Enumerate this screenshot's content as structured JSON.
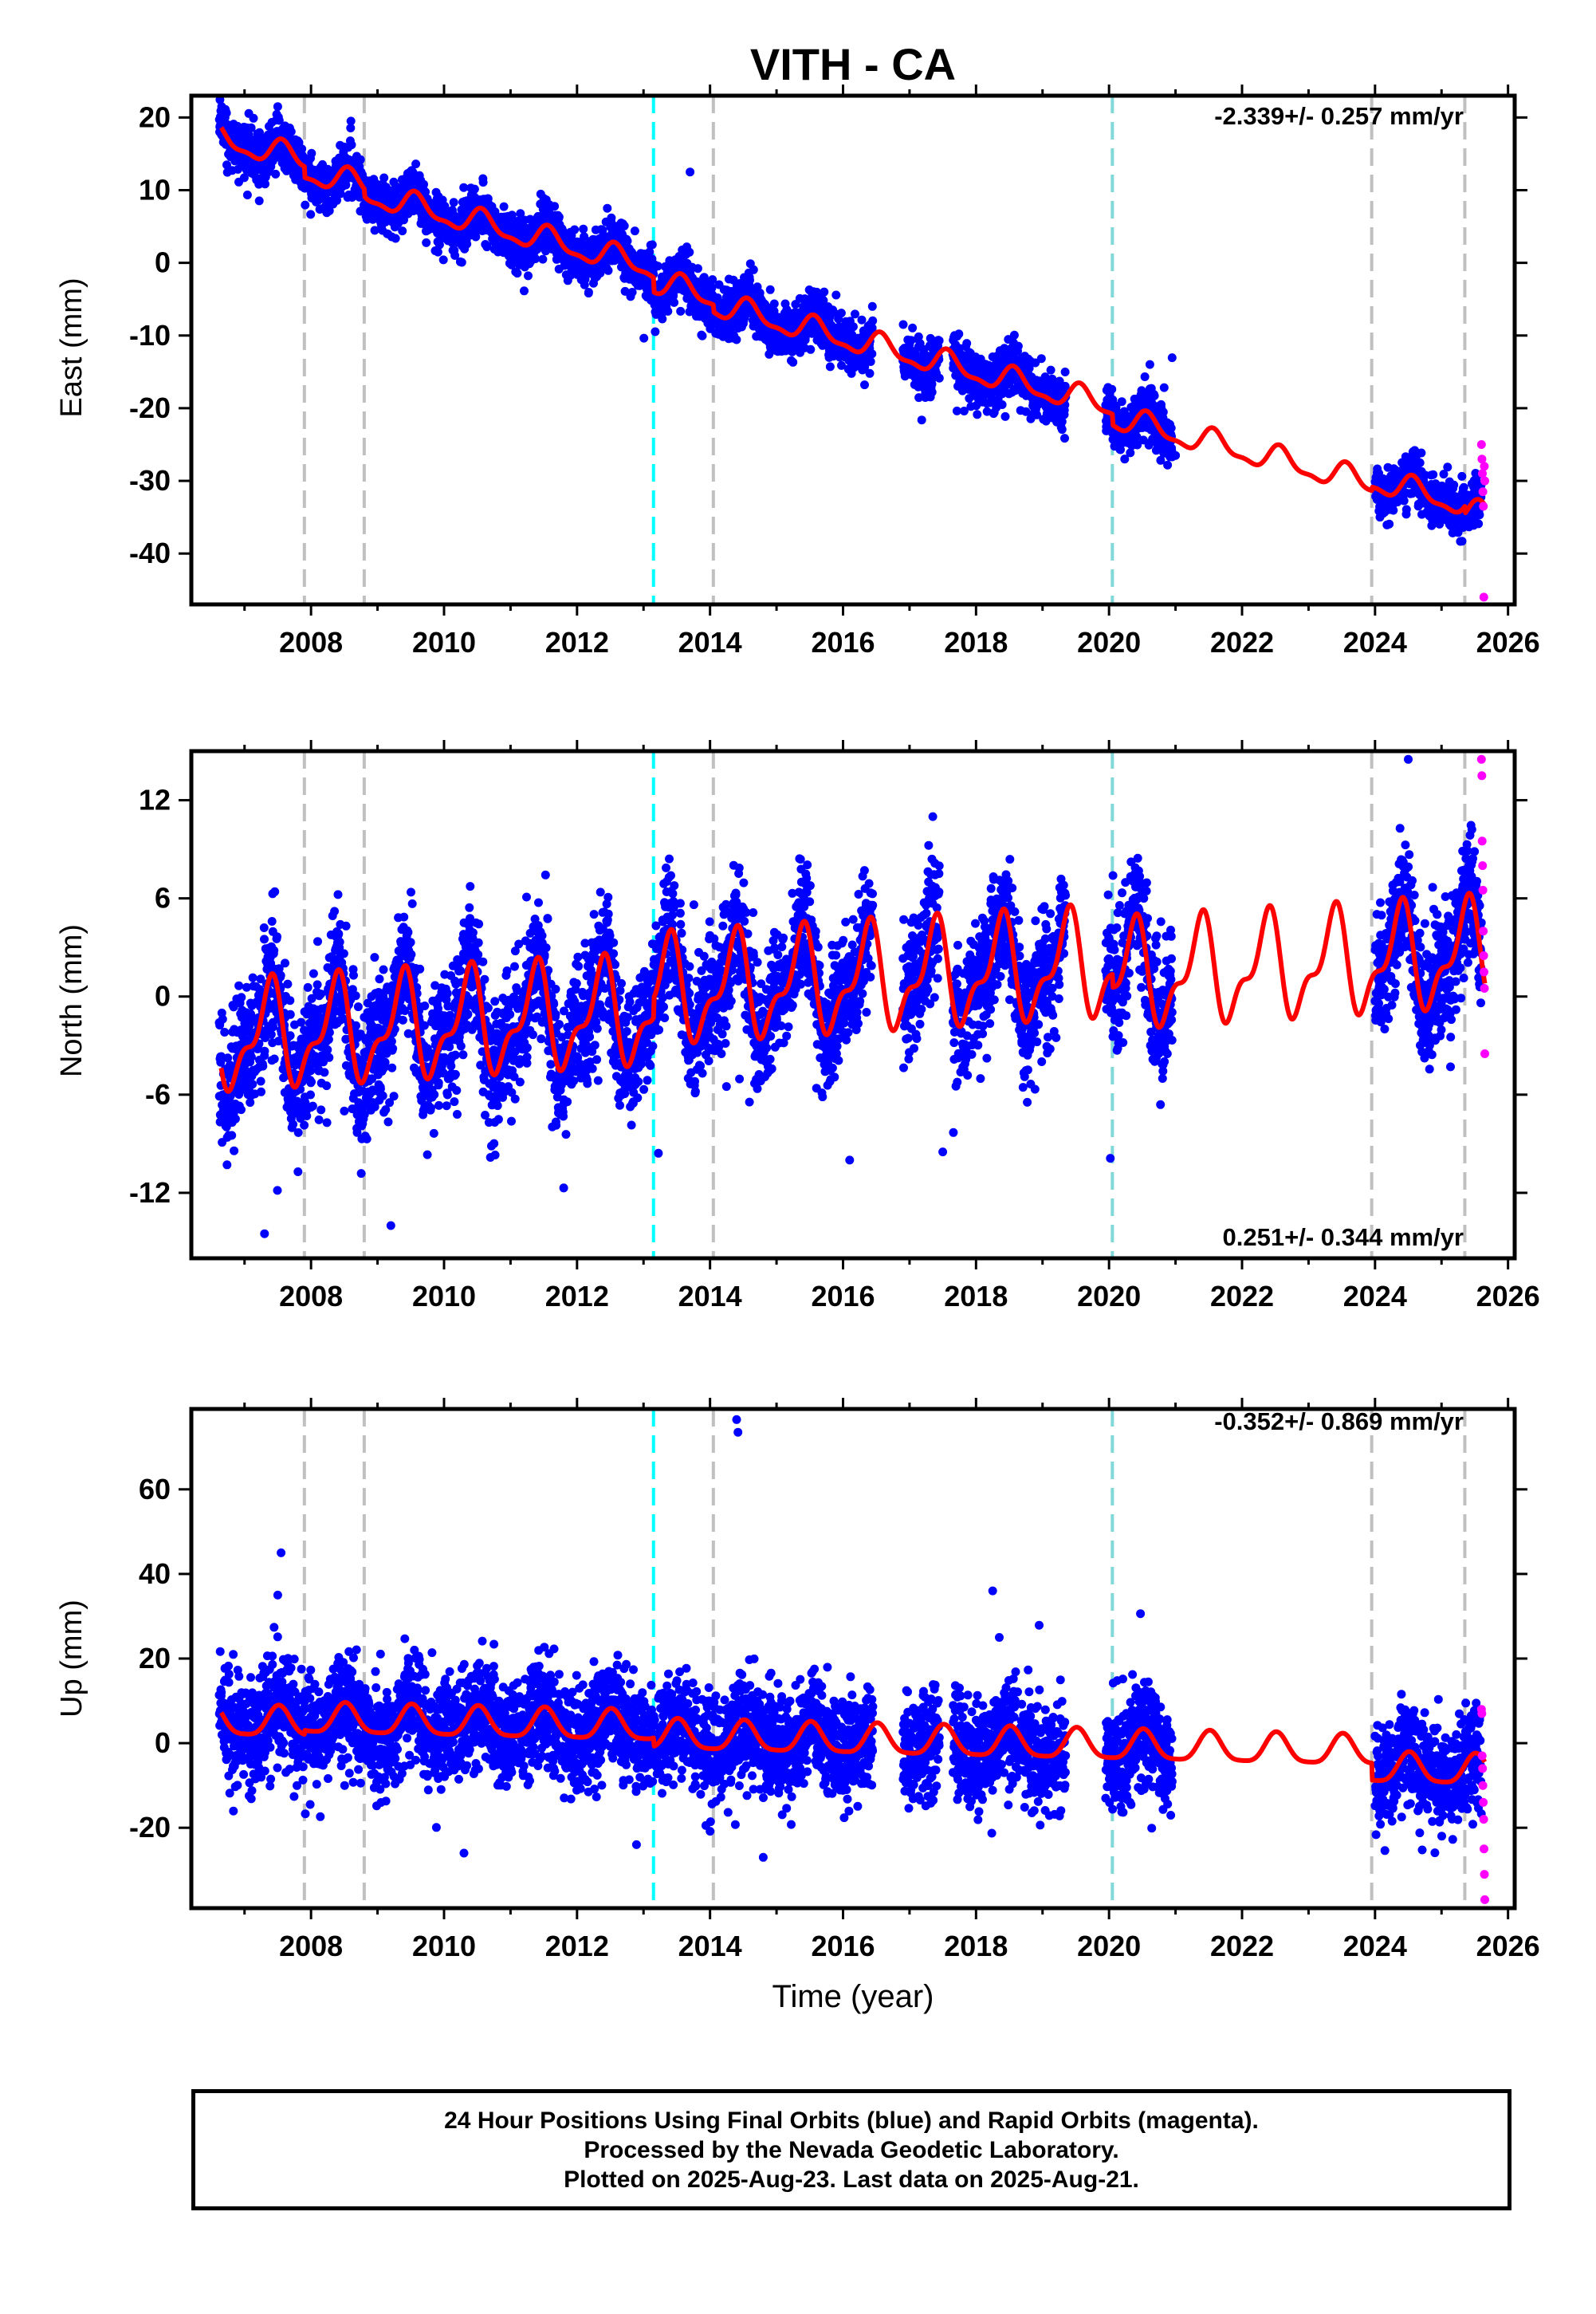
{
  "figure": {
    "title": "VITH - CA",
    "xlabel": "Time (year)",
    "footer": [
      "24 Hour Positions Using Final Orbits (blue) and Rapid Orbits (magenta).",
      "Processed by the Nevada Geodetic Laboratory.",
      "Plotted on 2025-Aug-23. Last data on 2025-Aug-21."
    ]
  },
  "colors": {
    "final_orbits": "#0000ff",
    "rapid_orbits": "#ff00ff",
    "model_fit": "#ff0000",
    "equipment_change_line": "#c0c0c0",
    "earthquake_line": "#00ffff",
    "combined_line": "#80d8d8"
  },
  "chart_data": [
    {
      "type": "scatter",
      "component": "east",
      "ylabel": "East (mm)",
      "rate_text": "-2.339+/- 0.257 mm/yr",
      "rate_position": "top-right",
      "xlim": [
        2006.2,
        2026.1
      ],
      "ylim": [
        -47,
        23
      ],
      "yticks": [
        20,
        10,
        0,
        -10,
        -20,
        -30,
        -40
      ],
      "xticks": [
        2008,
        2010,
        2012,
        2014,
        2016,
        2018,
        2020,
        2022,
        2024,
        2026
      ],
      "gray_lines": [
        2007.9,
        2008.8,
        2014.05,
        2023.95,
        2025.35
      ],
      "cyan_lines": [
        2013.15
      ],
      "mixed_lines": [
        2020.05
      ],
      "fit": {
        "start": 2006.65,
        "end": 2025.65,
        "ref_year": 2006.65,
        "intercept": 17.0,
        "rate": -2.339,
        "annual_amp": 1.6,
        "annual_phase": 4.2,
        "semi_amp": 0.6,
        "semi_phase": 1.0,
        "offsets": [
          [
            2007.9,
            -1.5
          ],
          [
            2008.8,
            -1.0
          ],
          [
            2013.15,
            -2.0
          ],
          [
            2014.05,
            -1.0
          ],
          [
            2020.05,
            -1.5
          ],
          [
            2023.95,
            0.5
          ],
          [
            2025.35,
            -1.0
          ]
        ]
      },
      "scatter": {
        "noise": 1.7,
        "spikes": [
          [
            2007.5,
            21.5
          ],
          [
            2008.6,
            19.5
          ],
          [
            2013.7,
            12.5
          ],
          [
            2021.0,
            -26.5
          ]
        ]
      },
      "segments": [
        [
          2006.62,
          2016.45
        ],
        [
          2016.9,
          2017.45
        ],
        [
          2017.65,
          2019.35
        ],
        [
          2019.95,
          2020.95
        ],
        [
          2024.0,
          2025.6
        ]
      ],
      "rapid": {
        "start": 2025.6,
        "end": 2025.65,
        "values": [
          -25.0,
          -27.0,
          -29.0,
          -31.5,
          -33.5,
          -46.0,
          -28.0,
          -30.0
        ]
      }
    },
    {
      "type": "scatter",
      "component": "north",
      "ylabel": "North (mm)",
      "rate_text": "0.251+/- 0.344 mm/yr",
      "rate_position": "bottom-right",
      "xlim": [
        2006.2,
        2026.1
      ],
      "ylim": [
        -16,
        15
      ],
      "yticks": [
        12,
        6,
        0,
        -6,
        -12
      ],
      "xticks": [
        2008,
        2010,
        2012,
        2014,
        2016,
        2018,
        2020,
        2022,
        2024,
        2026
      ],
      "gray_lines": [
        2007.9,
        2008.8,
        2014.05,
        2023.95,
        2025.35
      ],
      "cyan_lines": [
        2013.15
      ],
      "mixed_lines": [
        2020.05
      ],
      "fit": {
        "start": 2006.65,
        "end": 2025.65,
        "ref_year": 2006.65,
        "intercept": -2.6,
        "rate": 0.251,
        "annual_amp": 2.8,
        "annual_phase": 5.6,
        "semi_amp": 1.3,
        "semi_phase": 2.2,
        "offsets": [
          [
            2013.15,
            1.2
          ],
          [
            2020.05,
            -0.8
          ]
        ]
      },
      "scatter": {
        "noise": 1.9,
        "spikes": [
          [
            2007.3,
            -14.5
          ],
          [
            2008.5,
            -7.0
          ],
          [
            2009.2,
            -14.0
          ],
          [
            2011.8,
            -11.7
          ],
          [
            2016.1,
            -10.0
          ],
          [
            2017.5,
            -9.5
          ],
          [
            2024.5,
            14.5
          ],
          [
            2017.35,
            11.0
          ]
        ]
      },
      "segments": [
        [
          2006.62,
          2016.45
        ],
        [
          2016.9,
          2017.45
        ],
        [
          2017.65,
          2019.35
        ],
        [
          2019.95,
          2020.95
        ],
        [
          2024.0,
          2025.6
        ]
      ],
      "rapid": {
        "start": 2025.6,
        "end": 2025.65,
        "values": [
          14.5,
          13.5,
          9.5,
          8.0,
          6.5,
          4.0,
          2.5,
          1.5,
          0.5,
          -3.5
        ]
      }
    },
    {
      "type": "scatter",
      "component": "up",
      "ylabel": "Up (mm)",
      "rate_text": "-0.352+/- 0.869 mm/yr",
      "rate_position": "top-right",
      "xlim": [
        2006.2,
        2026.1
      ],
      "ylim": [
        -39,
        79
      ],
      "yticks": [
        60,
        40,
        20,
        0,
        -20
      ],
      "xticks": [
        2008,
        2010,
        2012,
        2014,
        2016,
        2018,
        2020,
        2022,
        2024,
        2026
      ],
      "gray_lines": [
        2007.9,
        2008.8,
        2014.05,
        2023.95,
        2025.35
      ],
      "cyan_lines": [
        2013.15
      ],
      "mixed_lines": [
        2020.05
      ],
      "fit": {
        "start": 2006.65,
        "end": 2025.65,
        "ref_year": 2006.65,
        "intercept": 5.0,
        "rate": -0.352,
        "annual_amp": 3.5,
        "annual_phase": 4.6,
        "semi_amp": 0.8,
        "semi_phase": 1.4,
        "offsets": [
          [
            2007.9,
            1.0
          ],
          [
            2013.15,
            -2.0
          ],
          [
            2023.95,
            -4.0
          ]
        ]
      },
      "scatter": {
        "noise": 6.0,
        "spikes": [
          [
            2007.55,
            45.0
          ],
          [
            2007.5,
            35.0
          ],
          [
            2014.4,
            76.5
          ],
          [
            2014.42,
            73.5
          ],
          [
            2018.25,
            36.0
          ],
          [
            2018.35,
            25.0
          ],
          [
            2014.8,
            -27.0
          ],
          [
            2010.3,
            -26.0
          ]
        ]
      },
      "segments": [
        [
          2006.62,
          2016.45
        ],
        [
          2016.9,
          2017.45
        ],
        [
          2017.65,
          2019.35
        ],
        [
          2019.95,
          2020.95
        ],
        [
          2024.0,
          2025.6
        ]
      ],
      "rapid": {
        "start": 2025.6,
        "end": 2025.65,
        "values": [
          8.0,
          7.0,
          -3.0,
          -6.0,
          -10.0,
          -14.0,
          -18.0,
          -25.0,
          -31.0,
          -37.0
        ]
      }
    }
  ]
}
